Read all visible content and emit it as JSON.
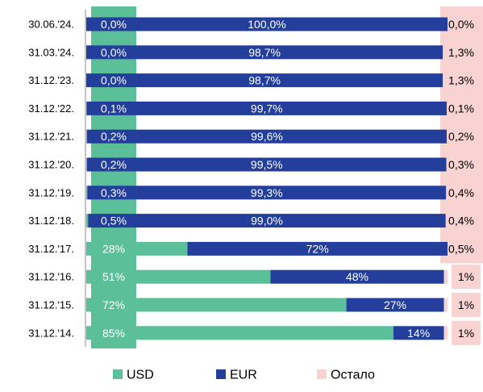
{
  "chart_data": {
    "type": "bar",
    "orientation": "horizontal",
    "stacked": true,
    "categories": [
      "30.06.'24.",
      "31.03.'24.",
      "31.12.'23.",
      "31.12.'22.",
      "31.12.'21.",
      "31.12.'20.",
      "31.12.'19.",
      "31.12.'18.",
      "31.12.'17.",
      "31.12.'16.",
      "31.12.'15.",
      "31.12.'14."
    ],
    "xlim": [
      0,
      100
    ],
    "legend": "bottom",
    "series": [
      {
        "name": "USD",
        "color": "#5bbf9a",
        "values": [
          0.0,
          0.0,
          0.0,
          0.1,
          0.2,
          0.2,
          0.3,
          0.5,
          28,
          51,
          72,
          85
        ],
        "value_labels": [
          "0,0%",
          "0,0%",
          "0,0%",
          "0,1%",
          "0,2%",
          "0,2%",
          "0,3%",
          "0,5%",
          "28%",
          "51%",
          "72%",
          "85%"
        ]
      },
      {
        "name": "EUR",
        "color": "#233f9b",
        "values": [
          100.0,
          98.7,
          98.7,
          99.7,
          99.6,
          99.5,
          99.3,
          99.0,
          72,
          48,
          27,
          14
        ],
        "value_labels": [
          "100,0%",
          "98,7%",
          "98,7%",
          "99,7%",
          "99,6%",
          "99,5%",
          "99,3%",
          "99,0%",
          "72%",
          "48%",
          "27%",
          "14%"
        ]
      },
      {
        "name": "Остало",
        "color": "#f9d2d2",
        "values": [
          0.0,
          1.3,
          1.3,
          0.1,
          0.2,
          0.3,
          0.4,
          0.4,
          0.5,
          1,
          1,
          1
        ],
        "value_labels": [
          "0,0%",
          "1,3%",
          "1,3%",
          "0,1%",
          "0,2%",
          "0,3%",
          "0,4%",
          "0,4%",
          "0,5%",
          "1%",
          "1%",
          "1%"
        ]
      }
    ]
  }
}
